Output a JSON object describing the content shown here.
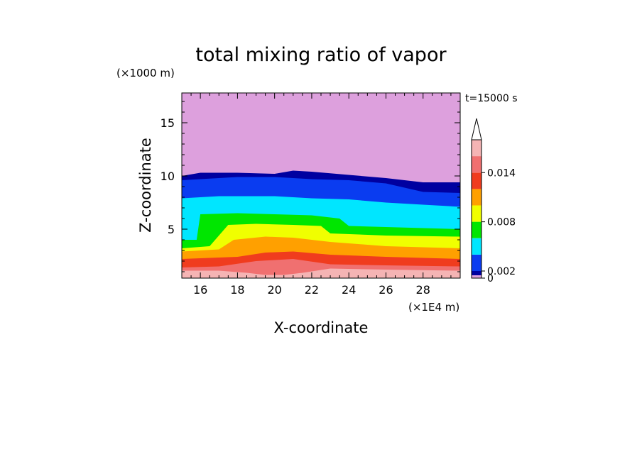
{
  "chart_data": {
    "type": "heatmap",
    "title": "total mixing ratio of vapor",
    "xlabel": "X-coordinate",
    "ylabel": "Z-coordinate",
    "x_unit": "(×1E4 m)",
    "y_unit": "(×1000 m)",
    "time_label": "t=15000 s",
    "xlim": [
      15,
      30
    ],
    "ylim": [
      0.4,
      17.8
    ],
    "x_ticks": [
      "16",
      "18",
      "20",
      "22",
      "24",
      "26",
      "28"
    ],
    "y_ticks": [
      "5",
      "10",
      "15"
    ],
    "colorbar": {
      "levels": [
        0,
        0.002,
        0.004,
        0.006,
        0.008,
        0.01,
        0.012,
        0.014,
        0.016
      ],
      "tick_labels": [
        "0",
        "0.002",
        "0.008",
        "0.014"
      ],
      "colors": [
        "#dda0dd",
        "#0000a0",
        "#0a3cf0",
        "#00e6ff",
        "#00e600",
        "#f0ff00",
        "#ffa000",
        "#f03c1e",
        "#f07070",
        "#f5b4b4"
      ],
      "extend_max": true
    },
    "contour_fields": [
      {
        "level": 0,
        "color": "#dda0dd",
        "top_profile": [
          [
            15,
            17.8
          ],
          [
            30,
            17.8
          ]
        ]
      },
      {
        "level": 0.0005,
        "color": "#0000a0",
        "top_profile": [
          [
            15,
            10.0
          ],
          [
            16,
            10.3
          ],
          [
            18,
            10.3
          ],
          [
            20,
            10.2
          ],
          [
            21,
            10.5
          ],
          [
            22,
            10.4
          ],
          [
            24,
            10.1
          ],
          [
            26,
            9.8
          ],
          [
            28,
            9.4
          ],
          [
            30,
            9.4
          ]
        ]
      },
      {
        "level": 0.001,
        "color": "#0a3cf0",
        "top_profile": [
          [
            15,
            9.6
          ],
          [
            18,
            9.9
          ],
          [
            20,
            9.9
          ],
          [
            22,
            9.7
          ],
          [
            24,
            9.6
          ],
          [
            26,
            9.3
          ],
          [
            28,
            8.5
          ],
          [
            30,
            8.4
          ]
        ]
      },
      {
        "level": 0.002,
        "color": "#00e6ff",
        "top_profile": [
          [
            15,
            7.9
          ],
          [
            17,
            8.1
          ],
          [
            20,
            8.1
          ],
          [
            22,
            7.9
          ],
          [
            24,
            7.8
          ],
          [
            26,
            7.5
          ],
          [
            28,
            7.3
          ],
          [
            30,
            7.1
          ]
        ]
      },
      {
        "level": 0.004,
        "color": "#00e600",
        "top_profile": [
          [
            15,
            4.0
          ],
          [
            15.8,
            4.0
          ],
          [
            16,
            6.4
          ],
          [
            18,
            6.5
          ],
          [
            20,
            6.4
          ],
          [
            22,
            6.3
          ],
          [
            23.5,
            6.0
          ],
          [
            24,
            5.3
          ],
          [
            26,
            5.2
          ],
          [
            30,
            5.0
          ]
        ]
      },
      {
        "level": 0.006,
        "color": "#f0ff00",
        "top_profile": [
          [
            15,
            3.2
          ],
          [
            16.5,
            3.4
          ],
          [
            17.5,
            5.4
          ],
          [
            19,
            5.5
          ],
          [
            21,
            5.4
          ],
          [
            22.5,
            5.3
          ],
          [
            23,
            4.6
          ],
          [
            26,
            4.4
          ],
          [
            30,
            4.3
          ]
        ]
      },
      {
        "level": 0.008,
        "color": "#ffa000",
        "top_profile": [
          [
            15,
            2.9
          ],
          [
            17,
            3.1
          ],
          [
            17.8,
            4.0
          ],
          [
            19.5,
            4.3
          ],
          [
            21,
            4.2
          ],
          [
            23,
            3.8
          ],
          [
            26,
            3.4
          ],
          [
            30,
            3.2
          ]
        ]
      },
      {
        "level": 0.01,
        "color": "#f03c1e",
        "top_profile": [
          [
            15,
            2.2
          ],
          [
            18,
            2.4
          ],
          [
            19.5,
            2.8
          ],
          [
            21,
            2.9
          ],
          [
            23,
            2.6
          ],
          [
            26,
            2.4
          ],
          [
            30,
            2.2
          ]
        ]
      },
      {
        "level": 0.012,
        "color": "#f07070",
        "top_profile": [
          [
            15,
            1.4
          ],
          [
            17,
            1.5
          ],
          [
            19,
            2.0
          ],
          [
            21,
            2.2
          ],
          [
            23,
            1.7
          ],
          [
            26,
            1.6
          ],
          [
            30,
            1.5
          ]
        ]
      },
      {
        "level": 0.014,
        "color": "#f5b4b4",
        "top_profile": [
          [
            15,
            1.1
          ],
          [
            17,
            1.1
          ],
          [
            18.5,
            0.9
          ],
          [
            19.5,
            0.7
          ],
          [
            20.5,
            0.7
          ],
          [
            21.5,
            0.9
          ],
          [
            23,
            1.3
          ],
          [
            26,
            1.2
          ],
          [
            30,
            1.1
          ]
        ]
      }
    ]
  }
}
